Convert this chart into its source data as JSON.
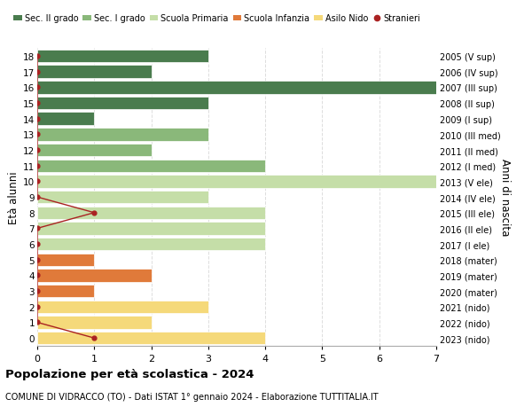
{
  "ages": [
    18,
    17,
    16,
    15,
    14,
    13,
    12,
    11,
    10,
    9,
    8,
    7,
    6,
    5,
    4,
    3,
    2,
    1,
    0
  ],
  "years": [
    "2005 (V sup)",
    "2006 (IV sup)",
    "2007 (III sup)",
    "2008 (II sup)",
    "2009 (I sup)",
    "2010 (III med)",
    "2011 (II med)",
    "2012 (I med)",
    "2013 (V ele)",
    "2014 (IV ele)",
    "2015 (III ele)",
    "2016 (II ele)",
    "2017 (I ele)",
    "2018 (mater)",
    "2019 (mater)",
    "2020 (mater)",
    "2021 (nido)",
    "2022 (nido)",
    "2023 (nido)"
  ],
  "bar_values": [
    3,
    2,
    7,
    3,
    1,
    3,
    2,
    4,
    7,
    3,
    4,
    4,
    4,
    1,
    2,
    1,
    3,
    2,
    4
  ],
  "bar_colors": [
    "#4a7c4e",
    "#4a7c4e",
    "#4a7c4e",
    "#4a7c4e",
    "#4a7c4e",
    "#8ab87a",
    "#8ab87a",
    "#8ab87a",
    "#c5dea8",
    "#c5dea8",
    "#c5dea8",
    "#c5dea8",
    "#c5dea8",
    "#e07a3a",
    "#e07a3a",
    "#e07a3a",
    "#f5d97a",
    "#f5d97a",
    "#f5d97a"
  ],
  "stranieri_line_points": [
    [
      0,
      18
    ],
    [
      0,
      17
    ],
    [
      0,
      16
    ],
    [
      0,
      15
    ],
    [
      0,
      14
    ],
    [
      0,
      13
    ],
    [
      0,
      12
    ],
    [
      0,
      11
    ],
    [
      0,
      10
    ],
    [
      0,
      9
    ],
    [
      1,
      8
    ],
    [
      0,
      7
    ],
    [
      0,
      6
    ],
    [
      0,
      5
    ],
    [
      0,
      4
    ],
    [
      0,
      3
    ],
    [
      0,
      2
    ],
    [
      0,
      1
    ],
    [
      1,
      0
    ]
  ],
  "legend_labels": [
    "Sec. II grado",
    "Sec. I grado",
    "Scuola Primaria",
    "Scuola Infanzia",
    "Asilo Nido",
    "Stranieri"
  ],
  "legend_colors": [
    "#4a7c4e",
    "#8ab87a",
    "#c5dea8",
    "#e07a3a",
    "#f5d97a",
    "#aa2222"
  ],
  "title": "Popolazione per età scolastica - 2024",
  "subtitle": "COMUNE DI VIDRACCO (TO) - Dati ISTAT 1° gennaio 2024 - Elaborazione TUTTITALIA.IT",
  "ylabel": "Età alunni",
  "ylabel2": "Anni di nascita",
  "xlim": [
    0,
    7
  ],
  "ylim": [
    -0.5,
    18.5
  ],
  "bg_color": "#ffffff",
  "grid_color": "#dddddd",
  "stranieri_color": "#aa2222",
  "bar_height": 0.82
}
